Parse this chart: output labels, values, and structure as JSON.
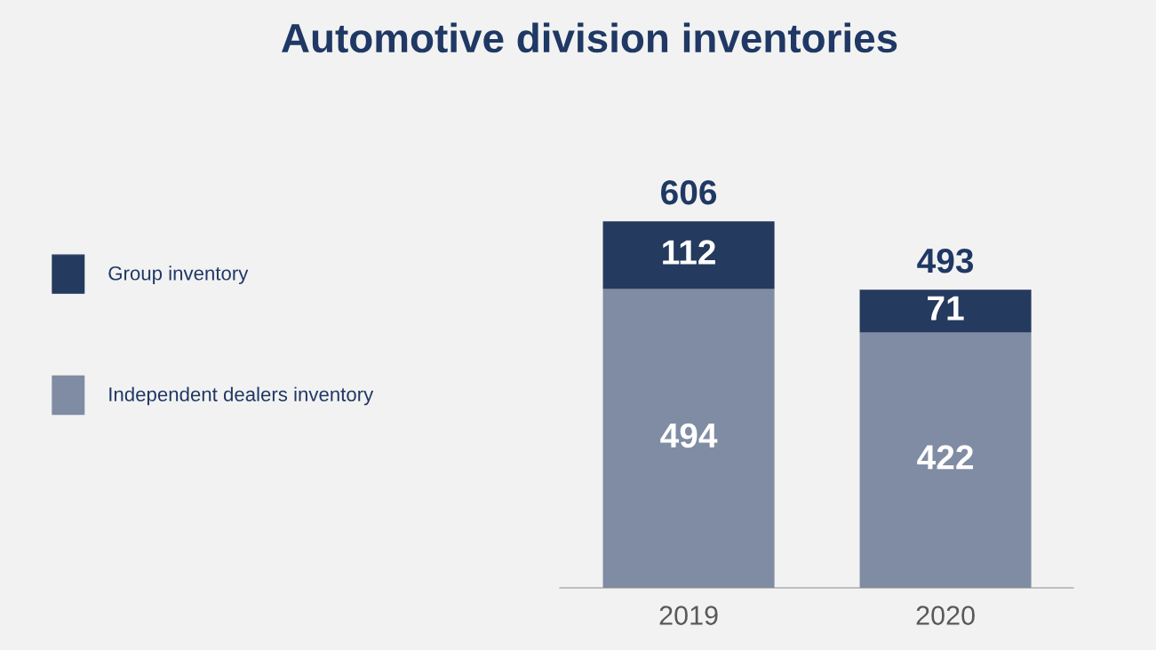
{
  "chart_data": {
    "type": "bar",
    "title": "Automotive division inventories",
    "categories": [
      "2019",
      "2020"
    ],
    "stacked": true,
    "data_labels": true,
    "legend": "left",
    "grid": false,
    "series": [
      {
        "name": "Independent dealers inventory",
        "color": "#7f8ca3",
        "values": [
          494,
          422
        ]
      },
      {
        "name": "Group inventory",
        "color": "#243a5e",
        "values": [
          112,
          71
        ]
      }
    ],
    "totals": [
      "606",
      "493"
    ]
  }
}
